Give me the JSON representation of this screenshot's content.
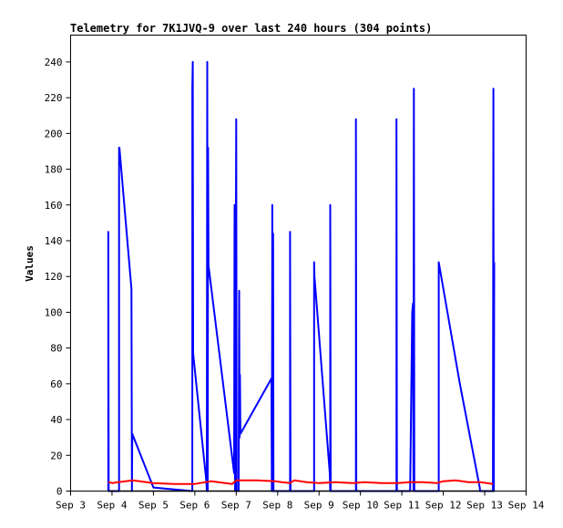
{
  "chart_data": {
    "type": "line",
    "title": "Telemetry for 7K1JVQ-9 over last 240 hours (304 points)",
    "ylabel": "Values",
    "xlabel": "",
    "ylim": [
      0,
      255
    ],
    "xlim": [
      3,
      14
    ],
    "x_tick_values": [
      3,
      4,
      5,
      6,
      7,
      8,
      9,
      10,
      11,
      12,
      13,
      14
    ],
    "x_tick_labels": [
      "Sep 3",
      "Sep 4",
      "Sep 5",
      "Sep 6",
      "Sep 7",
      "Sep 8",
      "Sep 9",
      "Sep 10",
      "Sep 11",
      "Sep 12",
      "Sep 13",
      "Sep 14"
    ],
    "y_ticks": [
      0,
      20,
      40,
      60,
      80,
      100,
      120,
      140,
      160,
      180,
      200,
      220,
      240
    ],
    "grid": false,
    "series": [
      {
        "color": "#0000ff",
        "points": [
          [
            3.91,
            0
          ],
          [
            3.91,
            145
          ],
          [
            3.92,
            0
          ],
          [
            4.17,
            0
          ],
          [
            4.17,
            192
          ],
          [
            4.18,
            192
          ],
          [
            4.47,
            113
          ],
          [
            4.48,
            0
          ],
          [
            4.49,
            32
          ],
          [
            5.0,
            2
          ],
          [
            5.94,
            0
          ],
          [
            5.94,
            225
          ],
          [
            5.95,
            240
          ],
          [
            5.96,
            77
          ],
          [
            6.28,
            5
          ],
          [
            6.29,
            0
          ],
          [
            6.3,
            240
          ],
          [
            6.31,
            0
          ],
          [
            6.32,
            192
          ],
          [
            6.33,
            126
          ],
          [
            6.95,
            10
          ],
          [
            6.96,
            160
          ],
          [
            6.97,
            0
          ],
          [
            7.0,
            208
          ],
          [
            7.01,
            0
          ],
          [
            7.06,
            0
          ],
          [
            7.07,
            112
          ],
          [
            7.08,
            30
          ],
          [
            7.09,
            65
          ],
          [
            7.1,
            32
          ],
          [
            7.85,
            63
          ],
          [
            7.86,
            0
          ],
          [
            7.87,
            160
          ],
          [
            7.88,
            0
          ],
          [
            7.89,
            144
          ],
          [
            7.9,
            0
          ],
          [
            8.3,
            0
          ],
          [
            8.3,
            145
          ],
          [
            8.31,
            0
          ],
          [
            8.88,
            0
          ],
          [
            8.88,
            128
          ],
          [
            8.89,
            120
          ],
          [
            9.26,
            10
          ],
          [
            9.27,
            0
          ],
          [
            9.27,
            160
          ],
          [
            9.28,
            0
          ],
          [
            9.89,
            0
          ],
          [
            9.89,
            208
          ],
          [
            9.9,
            0
          ],
          [
            10.87,
            0
          ],
          [
            10.87,
            208
          ],
          [
            10.88,
            0
          ],
          [
            11.2,
            0
          ],
          [
            11.25,
            100
          ],
          [
            11.27,
            105
          ],
          [
            11.28,
            0
          ],
          [
            11.29,
            225
          ],
          [
            11.3,
            0
          ],
          [
            11.89,
            0
          ],
          [
            11.89,
            128
          ],
          [
            12.4,
            60
          ],
          [
            12.88,
            2
          ],
          [
            12.89,
            0
          ],
          [
            13.2,
            0
          ],
          [
            13.21,
            225
          ],
          [
            13.22,
            0
          ],
          [
            13.23,
            128
          ]
        ]
      },
      {
        "color": "#ff0000",
        "points": [
          [
            3.91,
            5
          ],
          [
            4.0,
            4.5
          ],
          [
            4.5,
            6
          ],
          [
            5.0,
            4.5
          ],
          [
            5.5,
            4
          ],
          [
            6.0,
            4
          ],
          [
            6.4,
            5.5
          ],
          [
            6.9,
            4
          ],
          [
            7.0,
            6
          ],
          [
            7.5,
            6
          ],
          [
            7.95,
            5.5
          ],
          [
            8.1,
            5
          ],
          [
            8.3,
            4.5
          ],
          [
            8.4,
            6
          ],
          [
            8.7,
            5
          ],
          [
            9.0,
            4.5
          ],
          [
            9.4,
            5
          ],
          [
            9.8,
            4.5
          ],
          [
            10.1,
            5
          ],
          [
            10.5,
            4.5
          ],
          [
            10.9,
            4.5
          ],
          [
            11.2,
            5
          ],
          [
            11.5,
            5
          ],
          [
            11.85,
            4.5
          ],
          [
            12.0,
            5.5
          ],
          [
            12.3,
            6
          ],
          [
            12.6,
            5
          ],
          [
            12.9,
            5
          ],
          [
            13.2,
            4
          ]
        ]
      }
    ]
  }
}
